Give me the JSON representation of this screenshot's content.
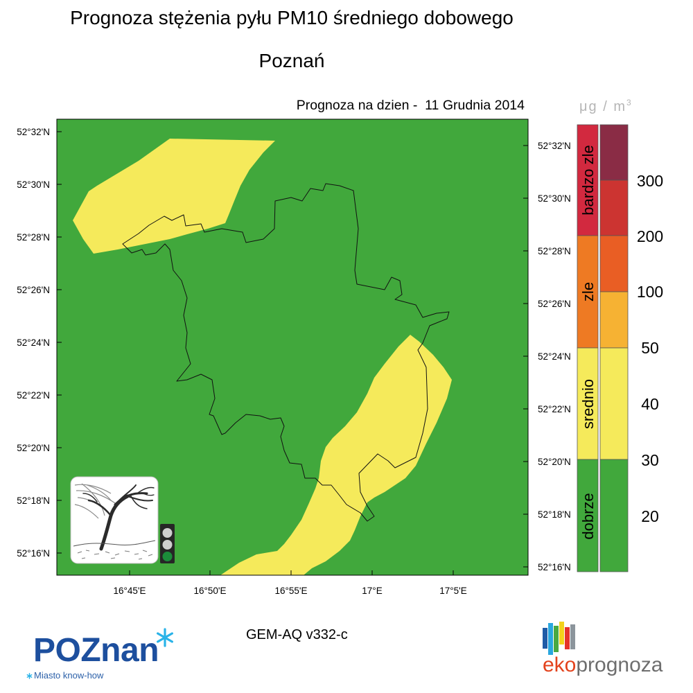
{
  "header": {
    "title": "Prognoza stężenia pyłu PM10 średniego dobowego",
    "city": "Poznań",
    "forecast_date_label": "Prognoza na dzien -  11 Grudnia 2014"
  },
  "map": {
    "lat_labels_left": [
      "52°32'N",
      "52°30'N",
      "52°28'N",
      "52°26'N",
      "52°24'N",
      "52°22'N",
      "52°20'N",
      "52°18'N",
      "52°16'N"
    ],
    "lat_labels_right": [
      "52°32'N",
      "52°30'N",
      "52°28'N",
      "52°26'N",
      "52°24'N",
      "52°22'N",
      "52°20'N",
      "52°18'N",
      "52°16'N"
    ],
    "lon_labels": [
      "16°45'E",
      "16°50'E",
      "16°55'E",
      "17°E",
      "17°5'E"
    ],
    "colors": {
      "background": "#41a83c",
      "zone": "#f5ea5b",
      "boundary": "#111111"
    }
  },
  "legend": {
    "unit": {
      "base": "μg / m",
      "exponent": "3"
    },
    "categories": [
      {
        "label": "bardzo zle",
        "color": "#d2293f"
      },
      {
        "label": "zle",
        "color": "#ee7a23"
      },
      {
        "label": "srednio",
        "color": "#f5ea5b"
      },
      {
        "label": "dobrze",
        "color": "#41a83c"
      }
    ],
    "scale_colors": [
      "#8a2c45",
      "#cc3431",
      "#e95e24",
      "#f6b233",
      "#f5ea5b",
      "#41a83c"
    ],
    "scale_values": [
      "300",
      "200",
      "100",
      "50",
      "40",
      "30",
      "20"
    ]
  },
  "inset": {
    "icons": {
      "weather": "windswept-tree-icon",
      "signal": "traffic-light-icon"
    },
    "traffic_light_colors": {
      "housing": "#262626",
      "off": "#cfcfcf",
      "green": "#1b8c3a"
    }
  },
  "footer": {
    "model_version": "GEM-AQ v332-c",
    "poznan_logo": {
      "wordmark": "POZnan",
      "tagline": "Miasto know-how",
      "colors": {
        "wordmark": "#1d4f9e",
        "asterisk": "#2ab3e8",
        "tagline": "#2a5fa8"
      }
    },
    "ekoprognoza_logo": {
      "prefix": "eko",
      "suffix": "prognoza",
      "colors": {
        "prefix": "#e3421c",
        "suffix": "#6e6e6e",
        "bars": [
          "#1f5ba6",
          "#2aa7df",
          "#49a942",
          "#f3d21c",
          "#e5332a",
          "#8c959c"
        ]
      }
    }
  }
}
